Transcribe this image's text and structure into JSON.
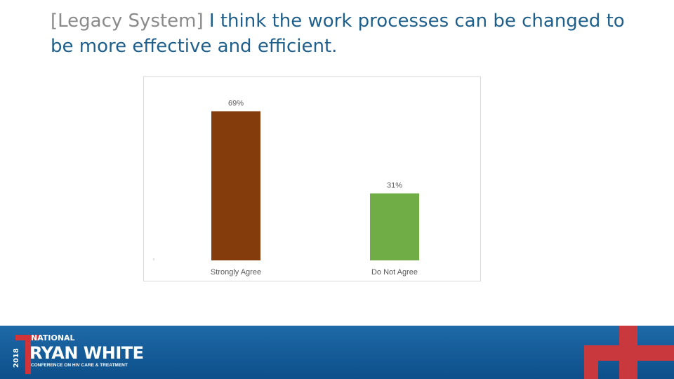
{
  "slide": {
    "title_prefix": "[Legacy System]",
    "title_text": " I think the work processes can be changed to be more effective and efficient."
  },
  "footer": {
    "logo_year": "2018",
    "logo_national": "NATIONAL",
    "logo_name": "RYAN WHITE",
    "logo_conference": "CONFERENCE ON HIV CARE & TREATMENT"
  },
  "colors": {
    "strongly_agree": "#843c0c",
    "do_not_agree": "#70ad47",
    "accent_red": "#d13438",
    "footer_blue": "#1e6aa8"
  },
  "chart_data": {
    "type": "bar",
    "categories": [
      "Strongly Agree",
      "Do Not Agree"
    ],
    "values": [
      69,
      31
    ],
    "data_labels": [
      "69%",
      "31%"
    ],
    "colors": [
      "#843c0c",
      "#70ad47"
    ],
    "ylim": [
      0,
      75
    ],
    "grid": false
  }
}
